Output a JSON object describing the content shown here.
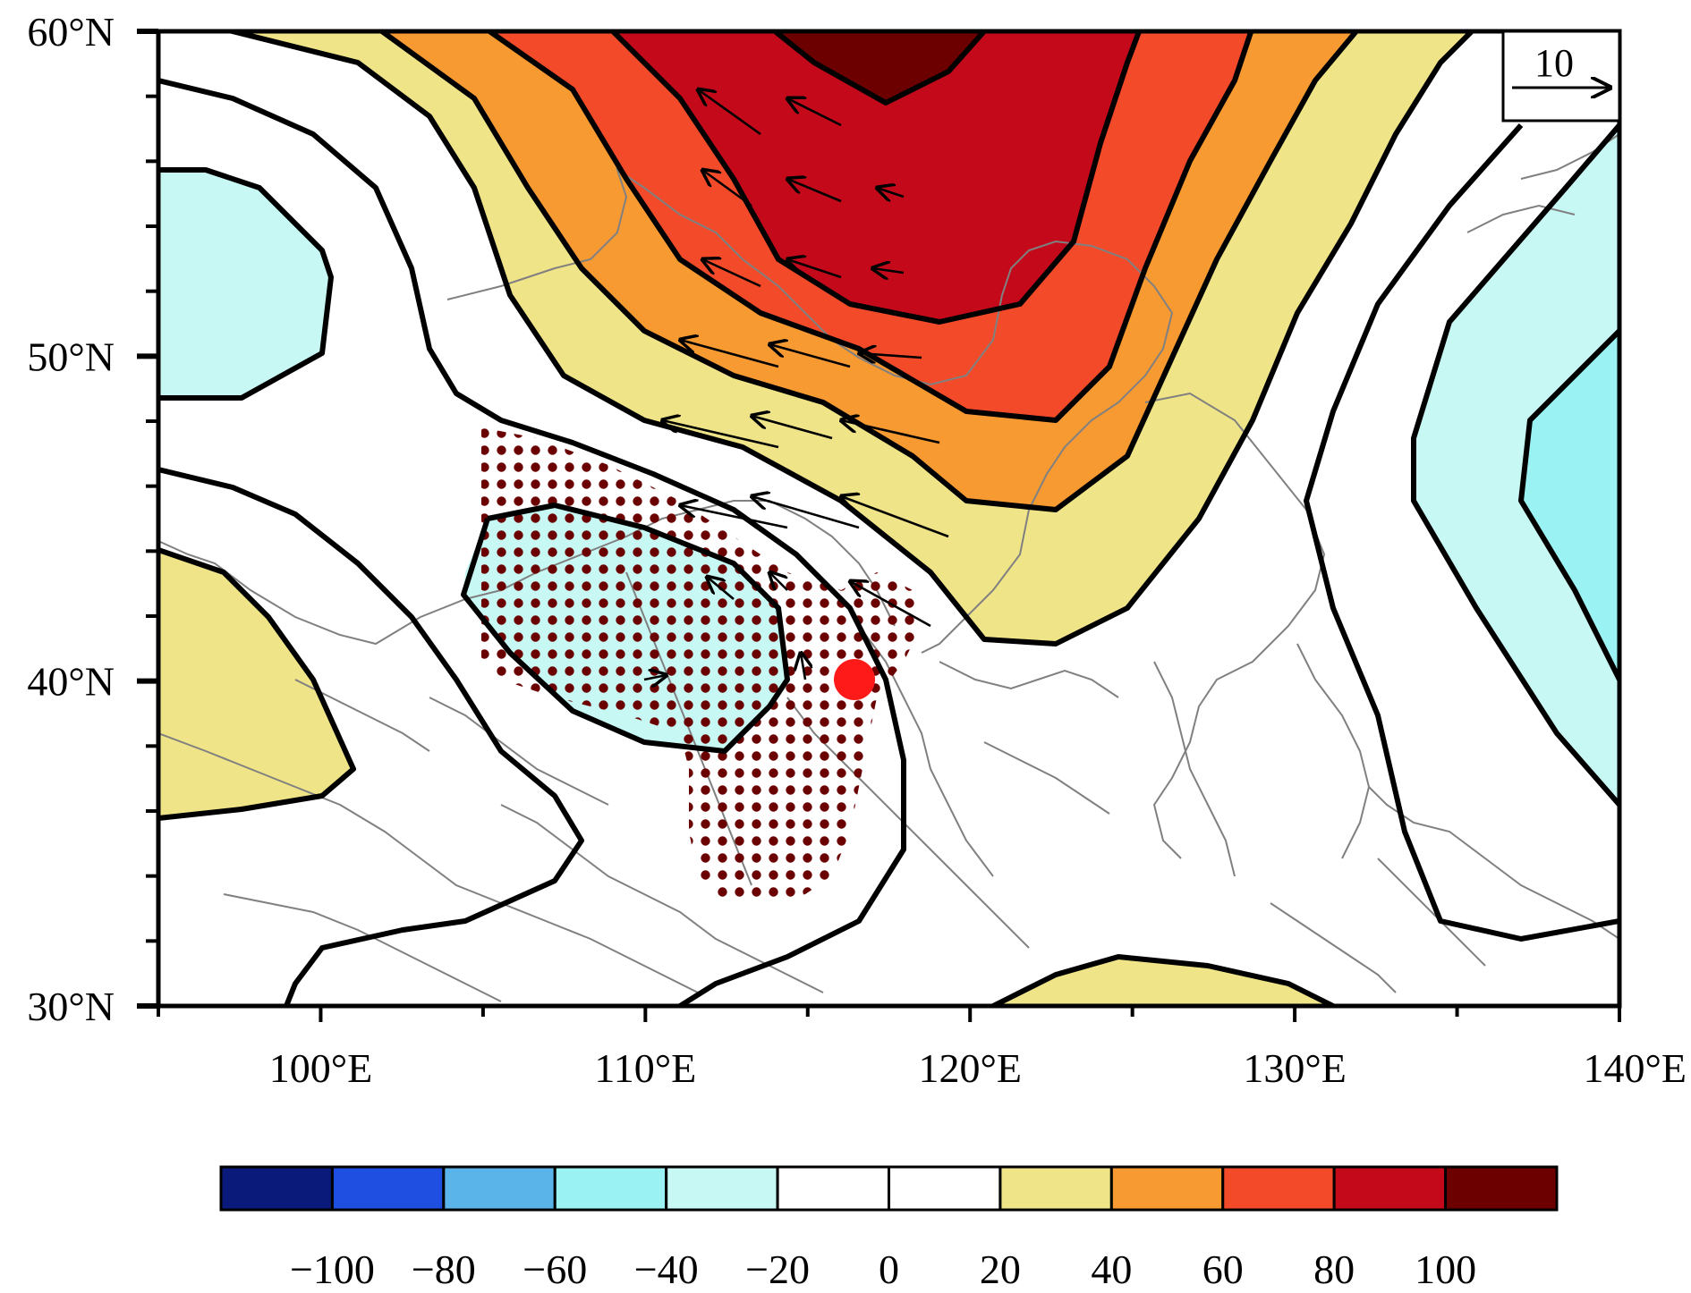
{
  "map": {
    "lon_range": [
      95,
      140
    ],
    "lat_range": [
      30,
      60
    ],
    "lat_ticks": [
      {
        "value": 30,
        "label": "30°N"
      },
      {
        "value": 40,
        "label": "40°N"
      },
      {
        "value": 50,
        "label": "50°N"
      },
      {
        "value": 60,
        "label": "60°N"
      }
    ],
    "lon_ticks": [
      {
        "value": 100,
        "label": "100°E"
      },
      {
        "value": 110,
        "label": "110°E"
      },
      {
        "value": 120,
        "label": "120°E"
      },
      {
        "value": 130,
        "label": "130°E"
      },
      {
        "value": 140,
        "label": "140°E"
      }
    ],
    "reference_vector": {
      "label": "10"
    },
    "marker": {
      "lon": 116.4,
      "lat": 40.0,
      "color": "#ff1a1a"
    },
    "stipple_color": "#6b0000",
    "contour_color": "#000000",
    "border_color": "#808080"
  },
  "colorbar": {
    "colors": [
      "#0a1a7a",
      "#1f4fe0",
      "#5ab4ea",
      "#9af2f2",
      "#c8f8f4",
      "#ffffff",
      "#ffffff",
      "#f0e488",
      "#f89a32",
      "#f34a2a",
      "#c40a1a",
      "#6c0000"
    ],
    "labels": [
      "−100",
      "−80",
      "−60",
      "−40",
      "−20",
      "0",
      "20",
      "40",
      "60",
      "80",
      "100"
    ]
  }
}
